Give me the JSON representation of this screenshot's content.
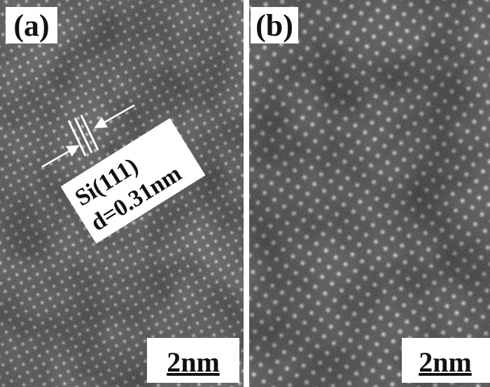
{
  "panels": [
    {
      "label": "(a)",
      "scale_bar": "2nm"
    },
    {
      "label": "(b)",
      "scale_bar": "2nm"
    }
  ],
  "annotation": {
    "plane": "Si(111)",
    "spacing": "d=0.31nm"
  }
}
